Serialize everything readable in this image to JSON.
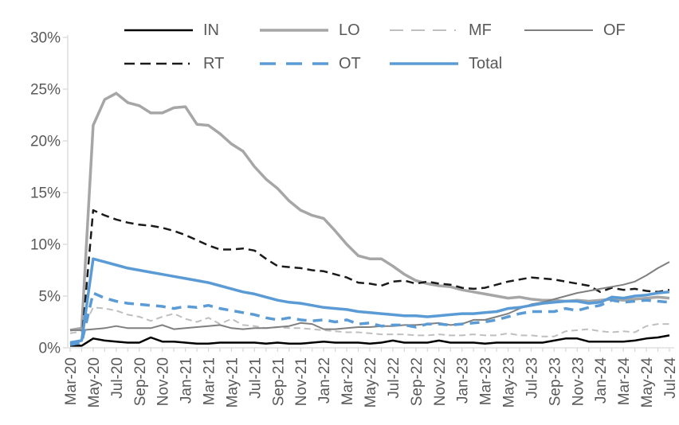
{
  "chart_data": {
    "type": "line",
    "title": "",
    "xlabel": "",
    "ylabel": "",
    "ylim": [
      0,
      30
    ],
    "yticks": [
      "0%",
      "5%",
      "10%",
      "15%",
      "20%",
      "25%",
      "30%"
    ],
    "x_label_interval": 2,
    "grid": "off",
    "legend_position": "top",
    "axis_color": "#D9D9D9",
    "label_color": "#595959",
    "accent_blue": "#5B9BD5",
    "categories": [
      "Mar-20",
      "Apr-20",
      "May-20",
      "Jun-20",
      "Jul-20",
      "Aug-20",
      "Sep-20",
      "Oct-20",
      "Nov-20",
      "Dec-20",
      "Jan-21",
      "Feb-21",
      "Mar-21",
      "Apr-21",
      "May-21",
      "Jun-21",
      "Jul-21",
      "Aug-21",
      "Sep-21",
      "Oct-21",
      "Nov-21",
      "Dec-21",
      "Jan-22",
      "Feb-22",
      "Mar-22",
      "Apr-22",
      "May-22",
      "Jun-22",
      "Jul-22",
      "Aug-22",
      "Sep-22",
      "Oct-22",
      "Nov-22",
      "Dec-22",
      "Jan-23",
      "Feb-23",
      "Mar-23",
      "Apr-23",
      "May-23",
      "Jun-23",
      "Jul-23",
      "Aug-23",
      "Sep-23",
      "Oct-23",
      "Nov-23",
      "Dec-23",
      "Jan-24",
      "Feb-24",
      "Mar-24",
      "Apr-24",
      "May-24",
      "Jun-24",
      "Jul-24"
    ],
    "series": [
      {
        "name": "IN",
        "color": "#000000",
        "style": "solid",
        "width": 2.5,
        "values": [
          0.2,
          0.2,
          0.9,
          0.7,
          0.6,
          0.5,
          0.5,
          1.0,
          0.6,
          0.6,
          0.5,
          0.4,
          0.4,
          0.5,
          0.5,
          0.5,
          0.5,
          0.4,
          0.5,
          0.4,
          0.4,
          0.5,
          0.6,
          0.5,
          0.5,
          0.5,
          0.4,
          0.5,
          0.7,
          0.5,
          0.5,
          0.5,
          0.7,
          0.5,
          0.5,
          0.5,
          0.4,
          0.5,
          0.5,
          0.5,
          0.5,
          0.5,
          0.7,
          0.9,
          0.9,
          0.6,
          0.6,
          0.6,
          0.6,
          0.7,
          0.9,
          1.0,
          1.2
        ]
      },
      {
        "name": "LO",
        "color": "#A6A6A6",
        "style": "solid",
        "width": 3.5,
        "values": [
          1.7,
          1.9,
          21.5,
          24.0,
          24.6,
          23.7,
          23.4,
          22.7,
          22.7,
          23.2,
          23.3,
          21.6,
          21.5,
          20.7,
          19.7,
          19.0,
          17.5,
          16.3,
          15.4,
          14.2,
          13.3,
          12.8,
          12.5,
          11.3,
          10.0,
          8.9,
          8.6,
          8.6,
          7.9,
          7.1,
          6.5,
          6.2,
          6.0,
          5.9,
          5.6,
          5.4,
          5.2,
          5.0,
          4.8,
          4.9,
          4.7,
          4.6,
          4.6,
          4.5,
          4.6,
          4.5,
          4.6,
          4.7,
          4.6,
          4.7,
          4.8,
          4.9,
          4.8
        ]
      },
      {
        "name": "MF",
        "color": "#BFBFBF",
        "style": "dashed",
        "width": 2,
        "values": [
          1.4,
          1.6,
          3.9,
          3.8,
          3.6,
          3.2,
          3.0,
          2.6,
          3.0,
          3.3,
          2.8,
          2.5,
          2.9,
          2.3,
          2.8,
          2.2,
          2.1,
          1.9,
          2.0,
          1.9,
          1.9,
          1.8,
          1.7,
          1.6,
          1.5,
          1.5,
          1.4,
          1.3,
          1.3,
          1.3,
          1.2,
          1.2,
          1.3,
          1.2,
          1.2,
          1.3,
          1.2,
          1.2,
          1.4,
          1.2,
          1.2,
          1.1,
          1.1,
          1.6,
          1.7,
          1.8,
          1.6,
          1.5,
          1.6,
          1.5,
          2.1,
          2.3,
          2.3
        ]
      },
      {
        "name": "OF",
        "color": "#7F7F7F",
        "style": "solid",
        "width": 2,
        "values": [
          1.7,
          1.7,
          1.8,
          1.9,
          2.1,
          1.9,
          1.9,
          1.9,
          2.2,
          1.8,
          1.9,
          2.0,
          2.1,
          2.2,
          1.9,
          1.8,
          1.9,
          1.9,
          2.0,
          2.1,
          2.4,
          2.3,
          1.8,
          1.8,
          1.9,
          2.0,
          2.0,
          2.1,
          2.1,
          2.2,
          2.2,
          2.3,
          2.4,
          2.2,
          2.3,
          2.7,
          2.7,
          3.0,
          3.3,
          3.8,
          4.2,
          4.4,
          4.7,
          5.0,
          5.3,
          5.5,
          5.7,
          5.9,
          6.1,
          6.4,
          7.0,
          7.7,
          8.3
        ]
      },
      {
        "name": "RT",
        "color": "#1A1A1A",
        "style": "dashed",
        "width": 2.5,
        "values": [
          0.4,
          0.6,
          13.3,
          12.8,
          12.4,
          12.1,
          11.9,
          11.8,
          11.6,
          11.3,
          10.9,
          10.4,
          9.9,
          9.5,
          9.5,
          9.6,
          9.4,
          8.6,
          7.9,
          7.8,
          7.7,
          7.5,
          7.4,
          7.1,
          6.8,
          6.3,
          6.2,
          6.0,
          6.4,
          6.5,
          6.2,
          6.4,
          6.2,
          6.1,
          5.8,
          5.7,
          5.8,
          6.1,
          6.4,
          6.6,
          6.8,
          6.7,
          6.6,
          6.4,
          6.2,
          6.0,
          5.4,
          5.8,
          5.6,
          5.7,
          5.5,
          5.4,
          5.6
        ]
      },
      {
        "name": "OT",
        "color": "#5B9BD5",
        "style": "dashed",
        "width": 3.5,
        "values": [
          0.3,
          0.5,
          5.3,
          4.8,
          4.5,
          4.3,
          4.2,
          4.1,
          4.0,
          3.8,
          4.0,
          3.9,
          4.1,
          3.8,
          3.6,
          3.4,
          3.2,
          2.9,
          2.7,
          2.9,
          2.7,
          2.6,
          2.7,
          2.5,
          2.7,
          2.3,
          2.4,
          2.1,
          2.2,
          2.2,
          2.0,
          2.3,
          2.3,
          2.2,
          2.3,
          2.4,
          2.5,
          2.7,
          3.0,
          3.3,
          3.5,
          3.5,
          3.5,
          3.8,
          3.6,
          3.9,
          4.1,
          4.6,
          4.4,
          4.5,
          4.6,
          4.5,
          4.4
        ]
      },
      {
        "name": "Total",
        "color": "#5B9BD5",
        "style": "solid",
        "width": 3.5,
        "values": [
          0.5,
          0.7,
          8.6,
          8.3,
          8.0,
          7.7,
          7.5,
          7.3,
          7.1,
          6.9,
          6.7,
          6.5,
          6.3,
          6.0,
          5.7,
          5.4,
          5.2,
          4.9,
          4.6,
          4.4,
          4.3,
          4.1,
          3.9,
          3.8,
          3.7,
          3.5,
          3.4,
          3.3,
          3.2,
          3.1,
          3.1,
          3.0,
          3.1,
          3.2,
          3.3,
          3.3,
          3.4,
          3.5,
          3.8,
          3.9,
          4.1,
          4.3,
          4.4,
          4.5,
          4.5,
          4.3,
          4.4,
          4.9,
          4.8,
          5.0,
          5.1,
          5.3,
          5.4
        ]
      }
    ]
  }
}
